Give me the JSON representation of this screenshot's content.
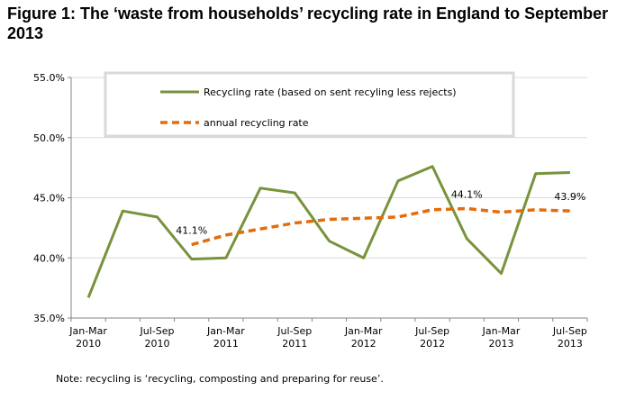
{
  "title": "Figure 1:  The ‘waste from households’ recycling rate in England to September 2013",
  "note": "Note:  recycling is ‘recycling, composting and preparing for reuse’.",
  "chart_data": {
    "type": "line",
    "title": "",
    "xlabel": "",
    "ylabel": "",
    "ylim": [
      35.0,
      55.0
    ],
    "y_ticks": [
      "35.0%",
      "40.0%",
      "45.0%",
      "50.0%",
      "55.0%"
    ],
    "x_tick_labels": [
      {
        "line1": "Jan-Mar",
        "line2": "2010"
      },
      {
        "line1": "Jul-Sep",
        "line2": "2010"
      },
      {
        "line1": "Jan-Mar",
        "line2": "2011"
      },
      {
        "line1": "Jul-Sep",
        "line2": "2011"
      },
      {
        "line1": "Jan-Mar",
        "line2": "2012"
      },
      {
        "line1": "Jul-Sep",
        "line2": "2012"
      },
      {
        "line1": "Jan-Mar",
        "line2": "2013"
      },
      {
        "line1": "Jul-Sep",
        "line2": "2013"
      }
    ],
    "x_categories": [
      "Jan-Mar 2010",
      "Apr-Jun 2010",
      "Jul-Sep 2010",
      "Oct-Dec 2010",
      "Jan-Mar 2011",
      "Apr-Jun 2011",
      "Jul-Sep 2011",
      "Oct-Dec 2011",
      "Jan-Mar 2012",
      "Apr-Jun 2012",
      "Jul-Sep 2012",
      "Oct-Dec 2012",
      "Jan-Mar 2013",
      "Apr-Jun 2013",
      "Jul-Sep 2013"
    ],
    "grid": true,
    "legend_placement": "top",
    "series": [
      {
        "name": "Recycling rate (based on sent recyling less rejects)",
        "color": "#77933c",
        "style": "solid",
        "values": [
          36.7,
          43.9,
          43.4,
          39.9,
          40.0,
          45.8,
          45.4,
          41.4,
          40.0,
          46.4,
          47.6,
          41.6,
          38.7,
          47.0,
          47.1
        ]
      },
      {
        "name": "annual recycling rate",
        "color": "#e46c0a",
        "style": "dashed",
        "values": [
          null,
          null,
          null,
          41.1,
          41.9,
          42.4,
          42.9,
          43.2,
          43.3,
          43.4,
          44.0,
          44.1,
          43.8,
          44.0,
          43.9
        ]
      }
    ],
    "data_labels": [
      {
        "series": 1,
        "index": 3,
        "text": "41.1%"
      },
      {
        "series": 1,
        "index": 11,
        "text": "44.1%"
      },
      {
        "series": 1,
        "index": 14,
        "text": "43.9%"
      }
    ]
  }
}
